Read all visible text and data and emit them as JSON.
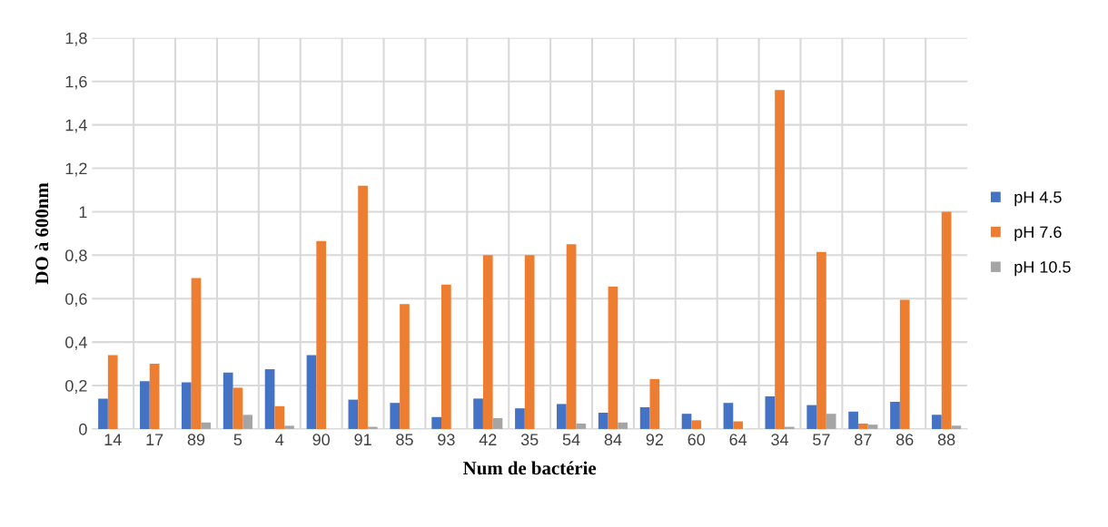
{
  "chart_data": {
    "type": "bar",
    "xlabel": "Num de bactérie",
    "ylabel": "DO à 600nm",
    "categories": [
      "14",
      "17",
      "89",
      "5",
      "4",
      "90",
      "91",
      "85",
      "93",
      "42",
      "35",
      "54",
      "84",
      "92",
      "60",
      "64",
      "34",
      "57",
      "87",
      "86",
      "88"
    ],
    "series": [
      {
        "name": "pH 4.5",
        "color": "#4472c4",
        "values": [
          0.14,
          0.22,
          0.215,
          0.26,
          0.275,
          0.34,
          0.135,
          0.12,
          0.055,
          0.14,
          0.095,
          0.115,
          0.075,
          0.1,
          0.07,
          0.12,
          0.15,
          0.11,
          0.08,
          0.125,
          0.065
        ]
      },
      {
        "name": "pH 7.6",
        "color": "#ed7d31",
        "values": [
          0.34,
          0.3,
          0.695,
          0.19,
          0.105,
          0.865,
          1.12,
          0.575,
          0.665,
          0.8,
          0.8,
          0.85,
          0.655,
          0.23,
          0.04,
          0.035,
          1.56,
          0.815,
          0.025,
          0.595,
          1.0
        ]
      },
      {
        "name": "pH 10.5",
        "color": "#a5a5a5",
        "values": [
          0,
          0,
          0.03,
          0.065,
          0.015,
          0,
          0.01,
          0,
          0,
          0.05,
          0,
          0.025,
          0.03,
          0,
          0,
          0,
          0.01,
          0.07,
          0.02,
          0,
          0.015
        ]
      }
    ],
    "ylim": [
      0,
      1.8
    ],
    "yticks": [
      0,
      {
        "value": 0.2,
        "label": "0,2"
      },
      {
        "value": 0.4,
        "label": "0,4"
      },
      {
        "value": 0.6,
        "label": "0,6"
      },
      {
        "value": 0.8,
        "label": "0,8"
      },
      1,
      {
        "value": 1.2,
        "label": "1,2"
      },
      {
        "value": 1.4,
        "label": "1,4"
      },
      {
        "value": 1.6,
        "label": "1,6"
      },
      {
        "value": 1.8,
        "label": "1,8"
      }
    ],
    "grid": true,
    "legend": "right"
  }
}
